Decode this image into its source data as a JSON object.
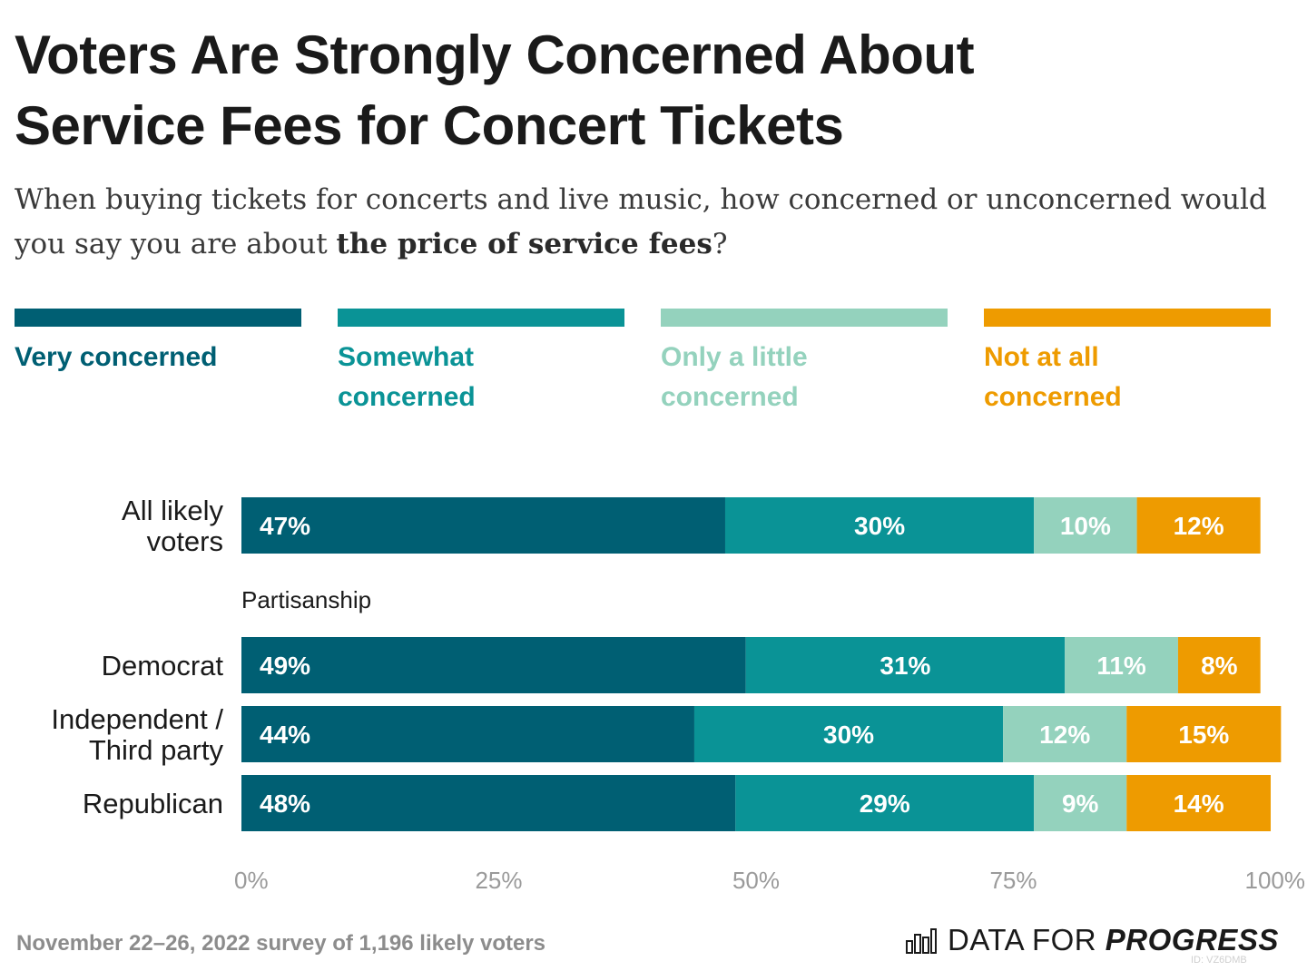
{
  "header": {
    "title_line1": "Voters Are Strongly Concerned About",
    "title_line2": "Service Fees for Concert Tickets",
    "subtitle_part1": "When buying tickets for concerts and live music, how concerned or unconcerned would you say you are about ",
    "subtitle_bold": "the price of service fees",
    "subtitle_part2": "?"
  },
  "legend": [
    {
      "line1": "Very concerned",
      "line2": "",
      "color": "#005f73"
    },
    {
      "line1": "Somewhat",
      "line2": "concerned",
      "color": "#0a9396"
    },
    {
      "line1": "Only a little",
      "line2": "concerned",
      "color": "#94d2bd"
    },
    {
      "line1": "Not at all",
      "line2": "concerned",
      "color": "#ee9b00"
    }
  ],
  "chart_data": {
    "type": "bar",
    "orientation": "horizontal-stacked",
    "xlim": [
      0,
      100
    ],
    "x_ticks": [
      "0%",
      "25%",
      "50%",
      "75%",
      "100%"
    ],
    "group_label": "Partisanship",
    "categories": [
      [
        "All likely",
        "voters"
      ],
      [
        "Democrat"
      ],
      [
        "Independent /",
        "Third party"
      ],
      [
        "Republican"
      ]
    ],
    "series": [
      {
        "name": "Very concerned",
        "color": "#005f73",
        "label_color": "#ffffff",
        "values": [
          47,
          49,
          44,
          48
        ]
      },
      {
        "name": "Somewhat concerned",
        "color": "#0a9396",
        "label_color": "#ffffff",
        "values": [
          30,
          31,
          30,
          29
        ]
      },
      {
        "name": "Only a little concerned",
        "color": "#94d2bd",
        "label_color": "#ffffff",
        "values": [
          10,
          11,
          12,
          9
        ]
      },
      {
        "name": "Not at all concerned",
        "color": "#ee9b00",
        "label_color": "#ffffff",
        "values": [
          12,
          8,
          15,
          14
        ]
      }
    ],
    "value_labels": [
      [
        "47%",
        "30%",
        "10%",
        "12%"
      ],
      [
        "49%",
        "31%",
        "11%",
        "8%"
      ],
      [
        "44%",
        "30%",
        "12%",
        "15%"
      ],
      [
        "48%",
        "29%",
        "9%",
        "14%"
      ]
    ]
  },
  "footer": {
    "note": "November 22–26, 2022 survey of 1,196 likely voters",
    "logo_light": "DATA FOR ",
    "logo_bold": "PROGRESS",
    "chart_id": "ID: VZ6DMB"
  }
}
